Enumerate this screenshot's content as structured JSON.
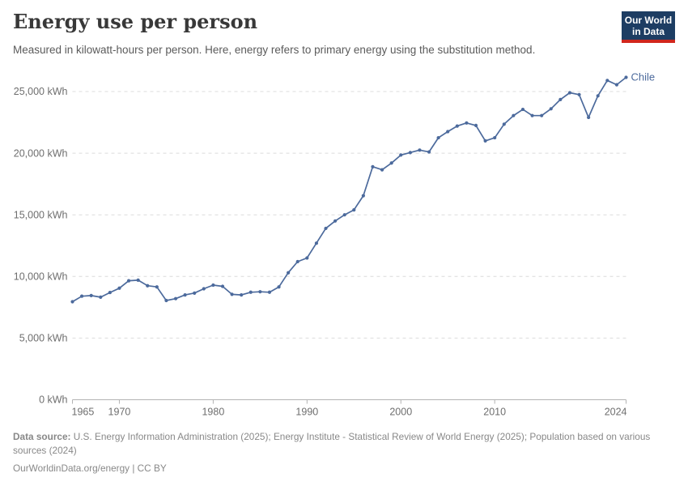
{
  "header": {
    "title": "Energy use per person",
    "subtitle": "Measured in kilowatt-hours per person. Here, energy refers to primary energy using the substitution method.",
    "logo": {
      "line1": "Our World",
      "line2": "in Data",
      "bg_color": "#1d3d63",
      "bar_color": "#d1271d"
    }
  },
  "chart_data": {
    "type": "line",
    "title": "Energy use per person",
    "unit": "kWh",
    "grid": "dashed-horizontal",
    "legend_position": "end-of-line-label",
    "xlim": [
      1965,
      2024
    ],
    "ylim": [
      0,
      26500
    ],
    "x_ticks": [
      1965,
      1970,
      1980,
      1990,
      2000,
      2010,
      2024
    ],
    "y_ticks": [
      0,
      5000,
      10000,
      15000,
      20000,
      25000
    ],
    "y_tick_labels": [
      "0 kWh",
      "5,000 kWh",
      "10,000 kWh",
      "15,000 kWh",
      "20,000 kWh",
      "25,000 kWh"
    ],
    "series": [
      {
        "name": "Chile",
        "color": "#4C6A9C",
        "x": [
          1965,
          1966,
          1967,
          1968,
          1969,
          1970,
          1971,
          1972,
          1973,
          1974,
          1975,
          1976,
          1977,
          1978,
          1979,
          1980,
          1981,
          1982,
          1983,
          1984,
          1985,
          1986,
          1987,
          1988,
          1989,
          1990,
          1991,
          1992,
          1993,
          1994,
          1995,
          1996,
          1997,
          1998,
          1999,
          2000,
          2001,
          2002,
          2003,
          2004,
          2005,
          2006,
          2007,
          2008,
          2009,
          2010,
          2011,
          2012,
          2013,
          2014,
          2015,
          2016,
          2017,
          2018,
          2019,
          2020,
          2021,
          2022,
          2023,
          2024
        ],
        "values": [
          7950,
          8400,
          8450,
          8320,
          8700,
          9050,
          9650,
          9700,
          9250,
          9150,
          8050,
          8200,
          8500,
          8650,
          9000,
          9300,
          9200,
          8550,
          8500,
          8720,
          8760,
          8720,
          9150,
          10300,
          11200,
          11500,
          12700,
          13900,
          14500,
          15000,
          15400,
          16550,
          18900,
          18650,
          19200,
          19850,
          20050,
          20250,
          20100,
          21250,
          21750,
          22200,
          22450,
          22250,
          21000,
          21250,
          22350,
          23050,
          23550,
          23050,
          23050,
          23600,
          24350,
          24900,
          24750,
          22900,
          24650,
          25900,
          25550,
          26150
        ]
      }
    ],
    "colors": {
      "gridline": "#dcdcdc",
      "axis": "#b3b3b3",
      "tick_label": "#6e6e6e"
    }
  },
  "footer": {
    "datasource_label": "Data source:",
    "datasource_text": " U.S. Energy Information Administration (2025); Energy Institute - Statistical Review of World Energy (2025); Population based on various sources (2024)",
    "url_text": "OurWorldinData.org/energy",
    "license_text": " | CC BY"
  }
}
